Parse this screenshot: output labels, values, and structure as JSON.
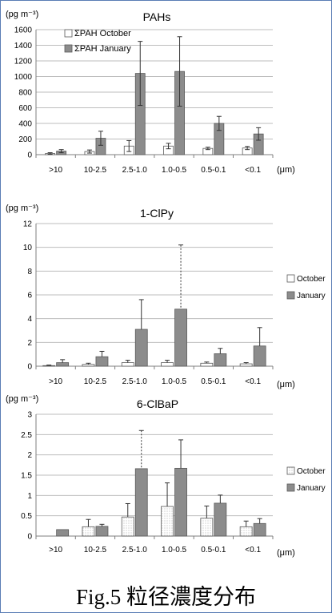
{
  "caption": "Fig.5 粒径濃度分布",
  "colors": {
    "october": "#ffffff",
    "january": "#8c8c8c",
    "grid": "#bdbdbd",
    "border": "#5a7db5"
  },
  "chart_data": [
    {
      "type": "bar",
      "title": "PAHs",
      "ylabel": "(pg m⁻³)",
      "xlabel": "(μm)",
      "categories": [
        ">10",
        "10-2.5",
        "2.5-1.0",
        "1.0-0.5",
        "0.5-0.1",
        "<0.1"
      ],
      "ylim": [
        0,
        1600
      ],
      "yticks": [
        "0",
        "200",
        "400",
        "600",
        "800",
        "1000",
        "1200",
        "1400",
        "1600"
      ],
      "legend_position": "top-left",
      "grid": true,
      "series": [
        {
          "name": "ΣPAH October",
          "values": [
            15,
            40,
            110,
            110,
            80,
            85
          ],
          "errors": [
            10,
            20,
            70,
            35,
            15,
            20
          ]
        },
        {
          "name": "ΣPAH January",
          "values": [
            45,
            210,
            1040,
            1065,
            400,
            265
          ],
          "errors": [
            20,
            90,
            410,
            445,
            90,
            80
          ]
        }
      ]
    },
    {
      "type": "bar",
      "title": "1-ClPy",
      "ylabel": "(pg m⁻³)",
      "xlabel": "(μm)",
      "categories": [
        ">10",
        "10-2.5",
        "2.5-1.0",
        "1.0-0.5",
        "0.5-0.1",
        "<0.1"
      ],
      "ylim": [
        0,
        12
      ],
      "yticks": [
        "0",
        "2",
        "4",
        "6",
        "8",
        "10",
        "12"
      ],
      "legend_position": "right",
      "grid": true,
      "series": [
        {
          "name": "October",
          "values": [
            0.05,
            0.15,
            0.3,
            0.3,
            0.25,
            0.2
          ],
          "errors": [
            0.05,
            0.1,
            0.2,
            0.2,
            0.1,
            0.1
          ]
        },
        {
          "name": "January",
          "values": [
            0.3,
            0.8,
            3.1,
            4.8,
            1.05,
            1.7
          ],
          "errors": [
            0.25,
            0.45,
            2.5,
            5.4,
            0.45,
            1.55
          ]
        }
      ]
    },
    {
      "type": "bar",
      "title": "6-ClBaP",
      "ylabel": "(pg m⁻³)",
      "xlabel": "(μm)",
      "categories": [
        ">10",
        "10-2.5",
        "2.5-1.0",
        "1.0-0.5",
        "0.5-0.1",
        "<0.1"
      ],
      "ylim": [
        0,
        3
      ],
      "yticks": [
        "0",
        "0.5",
        "1",
        "1.5",
        "2",
        "2.5",
        "3"
      ],
      "legend_position": "right",
      "grid": true,
      "series": [
        {
          "name": "October",
          "values": [
            0,
            0.23,
            0.47,
            0.73,
            0.44,
            0.23
          ],
          "errors": [
            0,
            0.18,
            0.33,
            0.58,
            0.3,
            0.14
          ]
        },
        {
          "name": "January",
          "values": [
            0.16,
            0.24,
            1.66,
            1.67,
            0.81,
            0.31
          ],
          "errors": [
            0,
            0.05,
            0.94,
            0.7,
            0.2,
            0.12
          ]
        }
      ]
    }
  ]
}
